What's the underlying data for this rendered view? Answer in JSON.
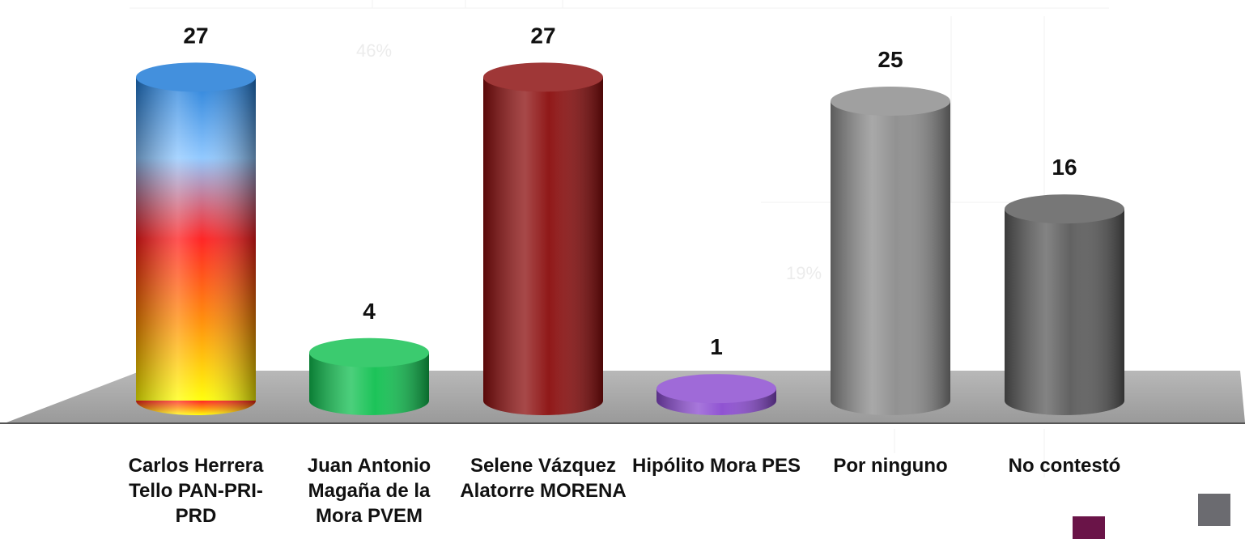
{
  "chart_data": {
    "type": "cylinder-bar",
    "categories": [
      "Carlos Herrera Tello PAN-PRI-PRD",
      "Juan Antonio Magaña de la Mora PVEM",
      "Selene Vázquez Alatorre MORENA",
      "Hipólito Mora PES",
      "Por ninguno",
      "No contestó"
    ],
    "values": [
      27,
      4,
      27,
      1,
      25,
      16
    ],
    "colors": [
      [
        "#1a78d6",
        "#8cc6ff",
        "#ff1a1a",
        "#ff8800",
        "#ffff00"
      ],
      "#10c050",
      "#8a0c0c",
      "#8a4ad0",
      "#8c8c8c",
      "#5a5a5a"
    ],
    "ylim": [
      0,
      30
    ],
    "annotations": [
      "46%",
      "19%"
    ]
  }
}
